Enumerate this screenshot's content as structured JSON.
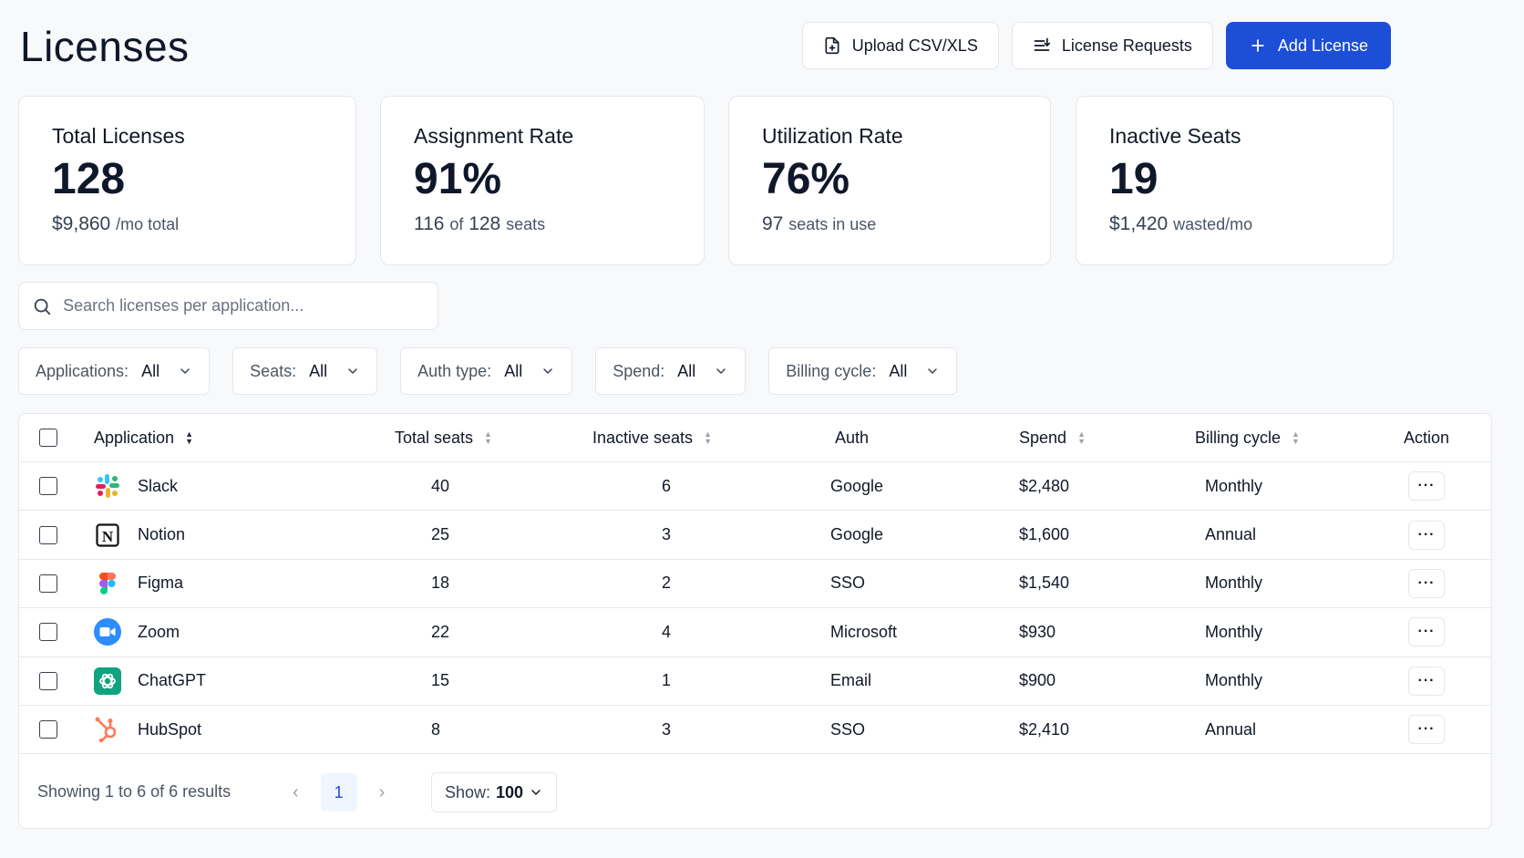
{
  "page_title": "Licenses",
  "actions": {
    "upload": "Upload CSV/XLS",
    "requests": "License Requests",
    "add": "Add License"
  },
  "stats": [
    {
      "label": "Total Licenses",
      "value": "128",
      "sub_main": "$9,860",
      "sub_mid": "",
      "sub_mid2": "",
      "sub_muted": "/mo total"
    },
    {
      "label": "Assignment Rate",
      "value": "91%",
      "sub_main": "116",
      "sub_mid": "of",
      "sub_mid2": "128",
      "sub_muted": "seats"
    },
    {
      "label": "Utilization Rate",
      "value": "76%",
      "sub_main": "97",
      "sub_mid": "",
      "sub_mid2": "",
      "sub_muted": "seats in use"
    },
    {
      "label": "Inactive Seats",
      "value": "19",
      "sub_main": "$1,420",
      "sub_mid": "",
      "sub_mid2": "",
      "sub_muted": "wasted/mo"
    }
  ],
  "search": {
    "placeholder": "Search licenses per application..."
  },
  "filters": [
    {
      "label": "Applications:",
      "value": "All"
    },
    {
      "label": "Seats:",
      "value": "All"
    },
    {
      "label": "Auth type:",
      "value": "All"
    },
    {
      "label": "Spend:",
      "value": "All"
    },
    {
      "label": "Billing cycle:",
      "value": "All"
    }
  ],
  "table": {
    "columns": {
      "application": "Application",
      "total_seats": "Total seats",
      "inactive_seats": "Inactive seats",
      "auth": "Auth",
      "spend": "Spend",
      "billing": "Billing cycle",
      "action": "Action"
    },
    "rows": [
      {
        "app": "Slack",
        "icon": "slack-icon",
        "total": "40",
        "inactive": "6",
        "auth": "Google",
        "spend": "$2,480",
        "billing": "Monthly"
      },
      {
        "app": "Notion",
        "icon": "notion-icon",
        "total": "25",
        "inactive": "3",
        "auth": "Google",
        "spend": "$1,600",
        "billing": "Annual"
      },
      {
        "app": "Figma",
        "icon": "figma-icon",
        "total": "18",
        "inactive": "2",
        "auth": "SSO",
        "spend": "$1,540",
        "billing": "Monthly"
      },
      {
        "app": "Zoom",
        "icon": "zoom-icon",
        "total": "22",
        "inactive": "4",
        "auth": "Microsoft",
        "spend": "$930",
        "billing": "Monthly"
      },
      {
        "app": "ChatGPT",
        "icon": "chatgpt-icon",
        "total": "15",
        "inactive": "1",
        "auth": "Email",
        "spend": "$900",
        "billing": "Monthly"
      },
      {
        "app": "HubSpot",
        "icon": "hubspot-icon",
        "total": "8",
        "inactive": "3",
        "auth": "SSO",
        "spend": "$2,410",
        "billing": "Annual"
      }
    ],
    "action_glyph": "···"
  },
  "footer": {
    "showing": "Showing 1 to 6 of 6 results",
    "current_page": "1",
    "show_label": "Show:",
    "show_value": "100"
  },
  "colors": {
    "primary": "#1d4ed8",
    "background": "#f8f9fb",
    "border": "#e5e7eb"
  }
}
